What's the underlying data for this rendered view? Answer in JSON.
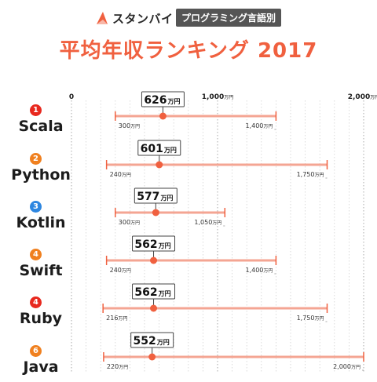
{
  "brand": {
    "name": "スタンバイ",
    "subtitle": "プログラミング言語別"
  },
  "colors": {
    "accent": "#f0603f",
    "gray_line": "#999999",
    "rank_red": "#e8281e",
    "rank_blue": "#2d86e0",
    "rank_orange": "#f0801f"
  },
  "chart_data": {
    "type": "range_dot",
    "title": "平均年収ランキング 2017",
    "unit": "万円",
    "xlim": [
      0,
      2000
    ],
    "ticks": [
      {
        "value": 0,
        "label": "0",
        "unit": ""
      },
      {
        "value": 1000,
        "label": "1,000",
        "unit": "万円"
      },
      {
        "value": 2000,
        "label": "2,000",
        "unit": "万円"
      }
    ],
    "grid": true,
    "series": [
      {
        "rank": "1",
        "rank_color": "#e8281e",
        "name": "Scala",
        "mean": 626,
        "mean_label": "626",
        "min": 300,
        "min_label": "300",
        "max": 1400,
        "max_label": "1,400"
      },
      {
        "rank": "2",
        "rank_color": "#f0801f",
        "name": "Python",
        "mean": 601,
        "mean_label": "601",
        "min": 240,
        "min_label": "240",
        "max": 1750,
        "max_label": "1,750"
      },
      {
        "rank": "3",
        "rank_color": "#2d86e0",
        "name": "Kotlin",
        "mean": 577,
        "mean_label": "577",
        "min": 300,
        "min_label": "300",
        "max": 1050,
        "max_label": "1,050"
      },
      {
        "rank": "4",
        "rank_color": "#f0801f",
        "name": "Swift",
        "mean": 562,
        "mean_label": "562",
        "min": 240,
        "min_label": "240",
        "max": 1400,
        "max_label": "1,400"
      },
      {
        "rank": "4",
        "rank_color": "#e8281e",
        "name": "Ruby",
        "mean": 562,
        "mean_label": "562",
        "min": 216,
        "min_label": "216",
        "max": 1750,
        "max_label": "1,750"
      },
      {
        "rank": "6",
        "rank_color": "#f0801f",
        "name": "Java",
        "mean": 552,
        "mean_label": "552",
        "min": 220,
        "min_label": "220",
        "max": 2000,
        "max_label": "2,000"
      }
    ]
  }
}
